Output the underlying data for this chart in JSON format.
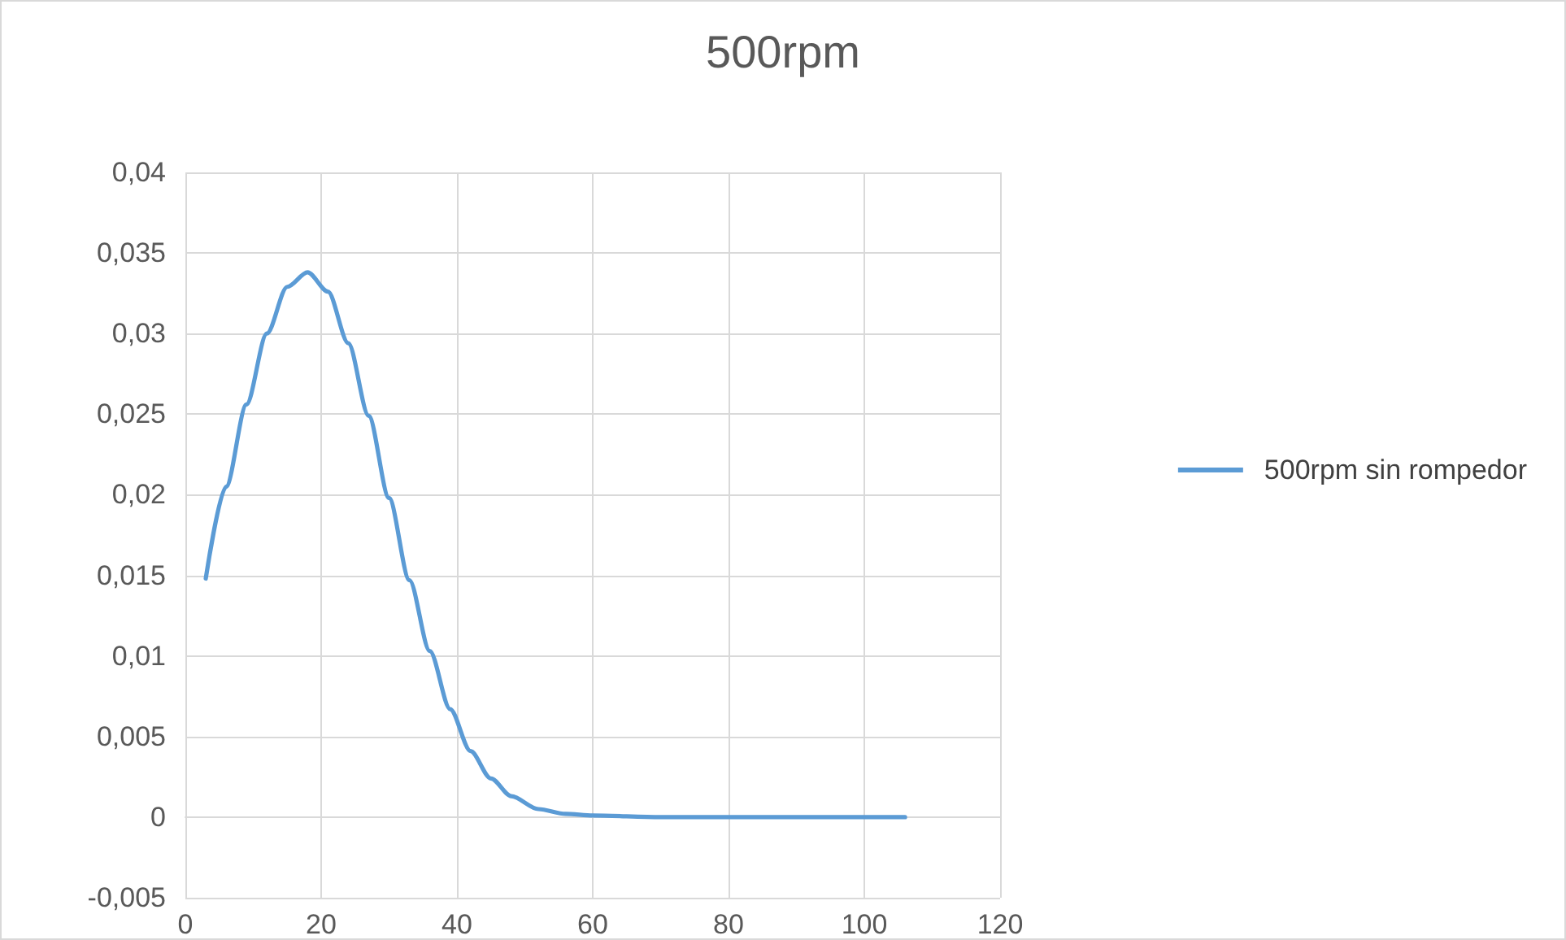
{
  "chart_data": {
    "type": "line",
    "title": "500rpm",
    "x": [
      3,
      6,
      9,
      12,
      15,
      18,
      21,
      24,
      27,
      30,
      33,
      36,
      39,
      42,
      45,
      48,
      52,
      56,
      60,
      70,
      80,
      90,
      100,
      106
    ],
    "series": [
      {
        "name": "500rpm sin rompedor",
        "color": "#5b9bd5",
        "values": [
          0.0148,
          0.0205,
          0.0256,
          0.03,
          0.0329,
          0.0338,
          0.0326,
          0.0294,
          0.0249,
          0.0198,
          0.0147,
          0.0103,
          0.0067,
          0.0041,
          0.0024,
          0.0013,
          0.0005,
          0.0002,
          0.0001,
          0,
          0,
          0,
          0,
          0
        ]
      }
    ],
    "xlim": [
      0,
      120
    ],
    "xticks": [
      0,
      20,
      40,
      60,
      80,
      100,
      120
    ],
    "ylim": [
      -0.005,
      0.04
    ],
    "yticks": [
      {
        "value": -0.005,
        "label": "-0,005"
      },
      {
        "value": 0,
        "label": "0"
      },
      {
        "value": 0.005,
        "label": "0,005"
      },
      {
        "value": 0.01,
        "label": "0,01"
      },
      {
        "value": 0.015,
        "label": "0,015"
      },
      {
        "value": 0.02,
        "label": "0,02"
      },
      {
        "value": 0.025,
        "label": "0,025"
      },
      {
        "value": 0.03,
        "label": "0,03"
      },
      {
        "value": 0.035,
        "label": "0,035"
      },
      {
        "value": 0.04,
        "label": "0,04"
      }
    ],
    "grid": true,
    "legend": "right",
    "marker": "none",
    "line_style": "solid"
  }
}
